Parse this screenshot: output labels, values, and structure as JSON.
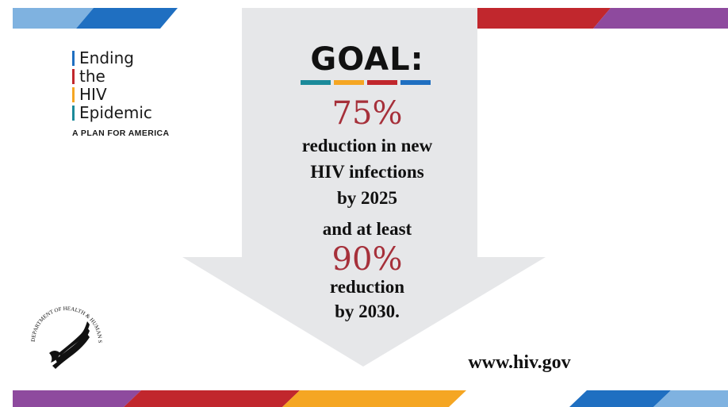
{
  "logo": {
    "words": [
      "Ending",
      "the",
      "HIV",
      "Epidemic"
    ],
    "tagline": "A PLAN FOR AMERICA",
    "bar_colors": [
      "#1f6fc1",
      "#c1272d",
      "#f5a623",
      "#1b8a9a"
    ]
  },
  "goal": {
    "heading": "GOAL:",
    "underline_colors": [
      "#1b8a9a",
      "#f5a623",
      "#c1272d",
      "#1f6fc1"
    ],
    "first_percent": "75%",
    "first_line1": "reduction in new",
    "first_line2": "HIV infections",
    "first_line3": "by 2025",
    "connector": "and at least",
    "second_percent": "90%",
    "second_line1": "reduction",
    "second_line2": "by 2030."
  },
  "footer": {
    "url": "www.hiv.gov"
  },
  "seal": {
    "text": "DEPARTMENT OF HEALTH & HUMAN SERVICES · USA"
  },
  "colors": {
    "arrow": "#e6e7e9",
    "percent": "#a6303a",
    "light_blue": "#7fb2e0",
    "blue": "#1f6fc1",
    "red": "#c1272d",
    "orange": "#f5a623",
    "purple": "#8e4a9e"
  }
}
